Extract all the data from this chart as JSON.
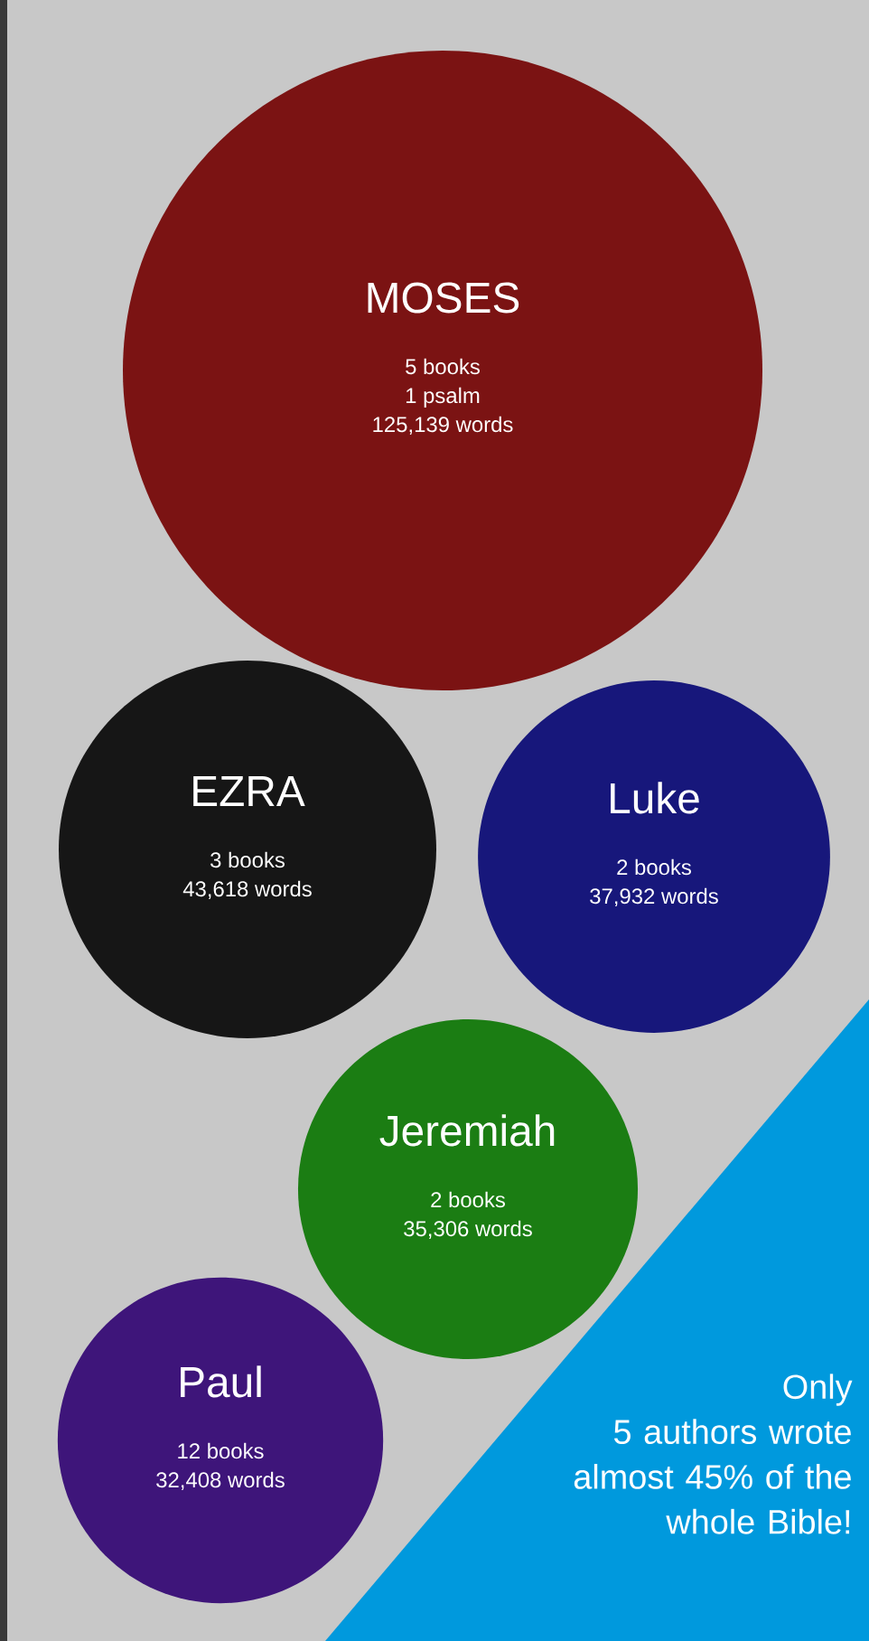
{
  "chart_data": {
    "type": "other",
    "categories": [
      "MOSES",
      "EZRA",
      "Luke",
      "Jeremiah",
      "Paul"
    ],
    "values": [
      125139,
      43618,
      37932,
      35306,
      32408
    ],
    "value_labels": [
      "125,139 words",
      "43,618 words",
      "37,932 words",
      "35,306 words",
      "32,408 words"
    ],
    "colors": [
      "#7b1313",
      "#161616",
      "#17177b",
      "#1b7d13",
      "#3e157a"
    ],
    "annotations": [
      {
        "text": "5 books",
        "x": "MOSES"
      },
      {
        "text": "1 psalm",
        "x": "MOSES"
      },
      {
        "text": "3 books",
        "x": "EZRA"
      },
      {
        "text": "2 books",
        "x": "Luke"
      },
      {
        "text": "2 books",
        "x": "Jeremiah"
      },
      {
        "text": "12 books",
        "x": "Paul"
      },
      "Only 5 authors wrote almost 45% of the whole Bible!"
    ]
  }
}
